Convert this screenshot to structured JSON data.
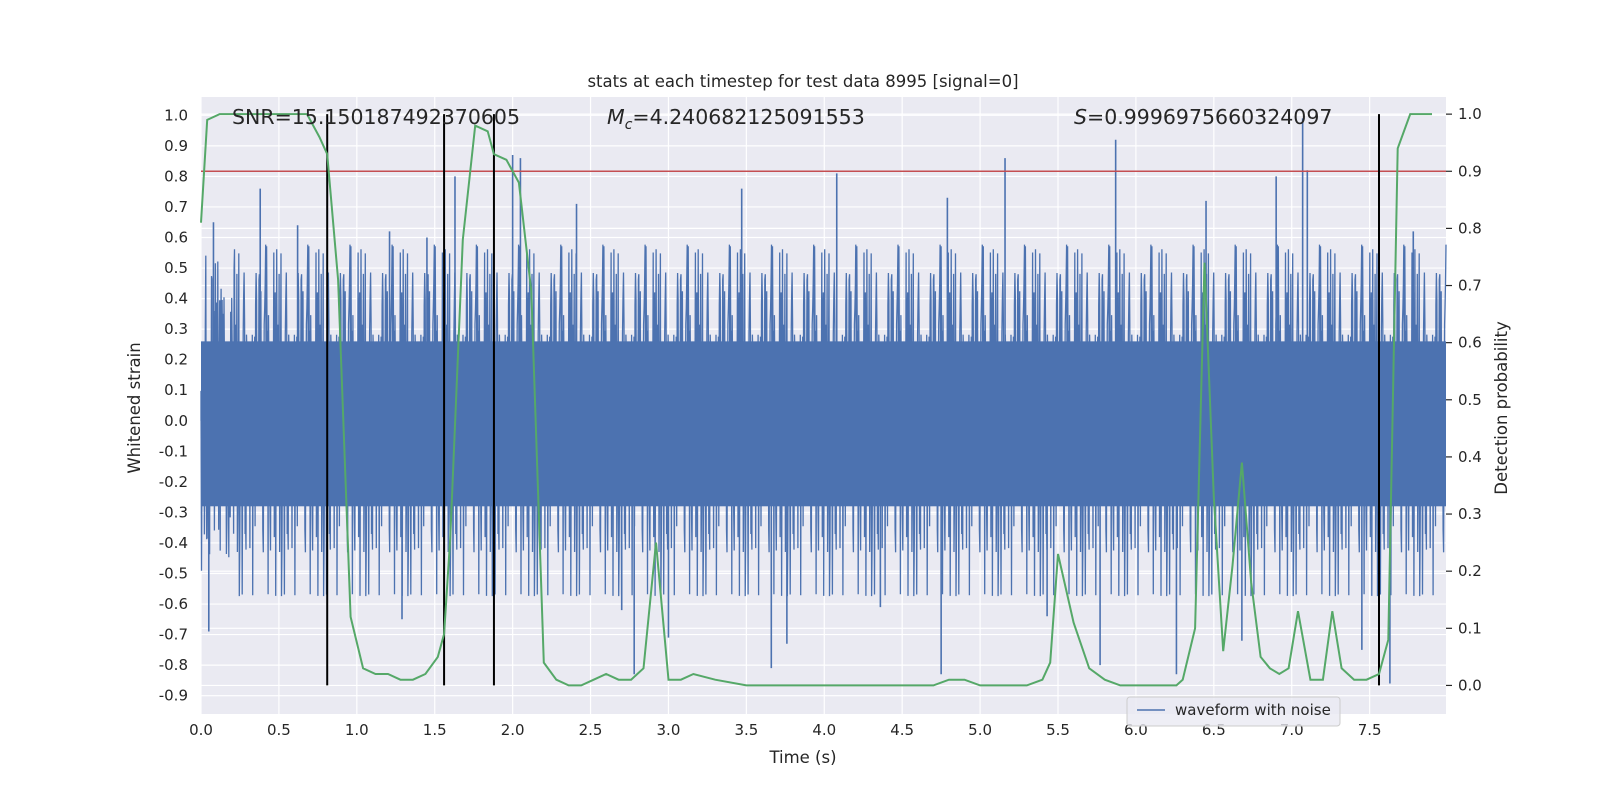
{
  "chart_data": {
    "type": "line",
    "title": "stats at each timestep for test data 8995 [signal=0]",
    "xlabel": "Time (s)",
    "ylabel": "Whitened strain",
    "y2label": "Detection probability",
    "xlim": [
      0.0,
      7.99
    ],
    "ylim": [
      -0.96,
      1.06
    ],
    "y2lim": [
      -0.05,
      1.03
    ],
    "x_ticks": [
      "0.0",
      "0.5",
      "1.0",
      "1.5",
      "2.0",
      "2.5",
      "3.0",
      "3.5",
      "4.0",
      "4.5",
      "5.0",
      "5.5",
      "6.0",
      "6.5",
      "7.0",
      "7.5"
    ],
    "y_ticks": [
      "1.0",
      "0.9",
      "0.8",
      "0.7",
      "0.6",
      "0.5",
      "0.4",
      "0.3",
      "0.2",
      "0.1",
      "0.0",
      "-0.1",
      "-0.2",
      "-0.3",
      "-0.4",
      "-0.5",
      "-0.6",
      "-0.7",
      "-0.8",
      "-0.9"
    ],
    "y2_ticks": [
      "1.0",
      "0.9",
      "0.8",
      "0.7",
      "0.6",
      "0.5",
      "0.4",
      "0.3",
      "0.2",
      "0.1",
      "0.0"
    ],
    "grid": true,
    "annotations": {
      "snr": "SNR=15.150187492370605",
      "mc_symbol": "M",
      "mc_sub": "c",
      "mc_value": "=4.240682125091553",
      "s_symbol": "S",
      "s_value": "=0.9996975660324097"
    },
    "threshold_line": {
      "axis": "y2",
      "value": 0.9,
      "color": "#c44e52"
    },
    "vertical_lines": [
      0.81,
      1.56,
      1.88,
      7.56
    ],
    "legend": {
      "entries": [
        "waveform with noise"
      ],
      "location": "lower right"
    },
    "series": [
      {
        "name": "waveform with noise",
        "axis": "y",
        "color": "#4c72b0",
        "kind": "noise",
        "duration": 7.99,
        "core_band": [
          -0.28,
          0.26
        ],
        "peaks": [
          [
            0.05,
            -0.69
          ],
          [
            0.08,
            0.65
          ],
          [
            0.38,
            0.76
          ],
          [
            0.62,
            0.64
          ],
          [
            0.81,
            0.81
          ],
          [
            1.21,
            0.62
          ],
          [
            1.29,
            -0.65
          ],
          [
            1.45,
            0.6
          ],
          [
            1.63,
            0.8
          ],
          [
            1.88,
            -0.65
          ],
          [
            2.0,
            0.87
          ],
          [
            2.05,
            0.86
          ],
          [
            2.41,
            0.71
          ],
          [
            2.7,
            -0.62
          ],
          [
            2.78,
            -0.83
          ],
          [
            3.0,
            -0.71
          ],
          [
            3.47,
            0.76
          ],
          [
            3.66,
            -0.81
          ],
          [
            3.76,
            -0.73
          ],
          [
            4.08,
            0.81
          ],
          [
            4.36,
            -0.61
          ],
          [
            4.75,
            -0.83
          ],
          [
            4.79,
            0.73
          ],
          [
            5.16,
            0.86
          ],
          [
            5.43,
            -0.64
          ],
          [
            5.77,
            -0.8
          ],
          [
            5.87,
            0.92
          ],
          [
            6.26,
            -0.83
          ],
          [
            6.45,
            0.72
          ],
          [
            6.68,
            -0.72
          ],
          [
            6.9,
            0.8
          ],
          [
            7.07,
            0.99
          ],
          [
            7.1,
            0.82
          ],
          [
            7.45,
            -0.75
          ],
          [
            7.63,
            -0.86
          ],
          [
            7.78,
            0.62
          ]
        ]
      },
      {
        "name": "",
        "axis": "y2",
        "color": "#55a868",
        "x": [
          0.0,
          0.04,
          0.12,
          0.2,
          0.28,
          0.36,
          0.44,
          0.52,
          0.6,
          0.68,
          0.76,
          0.81,
          0.88,
          0.96,
          1.04,
          1.12,
          1.2,
          1.28,
          1.36,
          1.44,
          1.52,
          1.56,
          1.6,
          1.68,
          1.76,
          1.84,
          1.88,
          1.96,
          2.04,
          2.12,
          2.2,
          2.28,
          2.36,
          2.44,
          2.52,
          2.6,
          2.68,
          2.76,
          2.84,
          2.92,
          3.0,
          3.08,
          3.16,
          3.3,
          3.5,
          3.7,
          3.9,
          4.1,
          4.3,
          4.5,
          4.6,
          4.7,
          4.8,
          4.9,
          5.0,
          5.1,
          5.2,
          5.3,
          5.4,
          5.45,
          5.5,
          5.6,
          5.7,
          5.8,
          5.9,
          6.0,
          6.1,
          6.2,
          6.26,
          6.3,
          6.38,
          6.44,
          6.5,
          6.56,
          6.62,
          6.68,
          6.74,
          6.8,
          6.86,
          6.92,
          6.98,
          7.04,
          7.12,
          7.2,
          7.26,
          7.32,
          7.4,
          7.48,
          7.56,
          7.62,
          7.68,
          7.76,
          7.9
        ],
        "values": [
          0.81,
          0.99,
          1.0,
          1.0,
          1.0,
          1.0,
          1.0,
          1.0,
          1.0,
          1.0,
          0.96,
          0.93,
          0.71,
          0.12,
          0.03,
          0.02,
          0.02,
          0.01,
          0.01,
          0.02,
          0.05,
          0.09,
          0.26,
          0.78,
          0.98,
          0.97,
          0.93,
          0.92,
          0.88,
          0.69,
          0.04,
          0.01,
          0.0,
          0.0,
          0.01,
          0.02,
          0.01,
          0.01,
          0.03,
          0.25,
          0.01,
          0.01,
          0.02,
          0.01,
          0.0,
          0.0,
          0.0,
          0.0,
          0.0,
          0.0,
          0.0,
          0.0,
          0.01,
          0.01,
          0.0,
          0.0,
          0.0,
          0.0,
          0.01,
          0.04,
          0.23,
          0.11,
          0.03,
          0.01,
          0.0,
          0.0,
          0.0,
          0.0,
          0.0,
          0.01,
          0.1,
          0.74,
          0.33,
          0.06,
          0.21,
          0.39,
          0.18,
          0.05,
          0.03,
          0.02,
          0.03,
          0.13,
          0.01,
          0.01,
          0.13,
          0.03,
          0.01,
          0.01,
          0.02,
          0.08,
          0.94,
          1.0,
          1.0
        ]
      }
    ]
  }
}
